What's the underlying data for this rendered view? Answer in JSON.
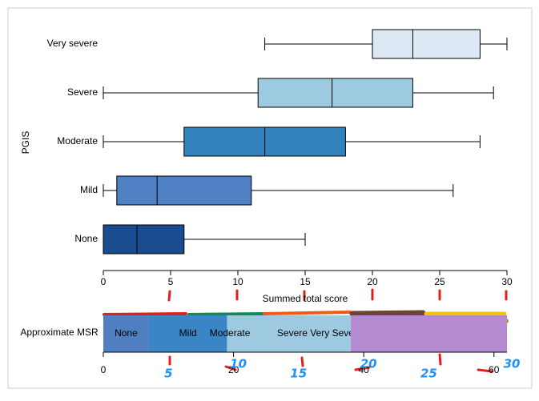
{
  "chart_data": [
    {
      "type": "box",
      "xlabel": "Summed total score",
      "ylabel": "PGIS",
      "xlim": [
        0,
        30
      ],
      "xticks": [
        0,
        5,
        10,
        15,
        20,
        25,
        30
      ],
      "categories": [
        "Very severe",
        "Severe",
        "Moderate",
        "Mild",
        "None"
      ],
      "boxes": [
        {
          "min": 12,
          "q1": 20,
          "median": 23,
          "q3": 28,
          "max": 30,
          "color": "#dce9f5"
        },
        {
          "min": 0,
          "q1": 11.5,
          "median": 17,
          "q3": 23,
          "max": 29,
          "color": "#9ecae1"
        },
        {
          "min": 0,
          "q1": 6,
          "median": 12,
          "q3": 18,
          "max": 28,
          "color": "#3182bd"
        },
        {
          "min": 0,
          "q1": 1,
          "median": 4,
          "q3": 11,
          "max": 26,
          "color": "#4f81c4"
        },
        {
          "min": 0,
          "q1": 0,
          "median": 2.5,
          "q3": 6,
          "max": 15,
          "color": "#1a4d8f"
        }
      ]
    },
    {
      "type": "segments",
      "ylabel": "Approximate MSR",
      "xlim": [
        0,
        62
      ],
      "xticks": [
        0,
        20,
        40,
        60
      ],
      "segments": [
        {
          "labels": [
            "None"
          ],
          "start": 0,
          "end": 7,
          "color": "#4f7fc1"
        },
        {
          "labels": [
            "Mild"
          ],
          "start": 7,
          "end": 19,
          "color": "#3a85c6"
        },
        {
          "labels": [
            "Moderate",
            "Severe Very Severe"
          ],
          "start": 19,
          "end": 38,
          "color": "#9ecae1"
        },
        {
          "labels": [],
          "start": 38,
          "end": 62,
          "color": "#b48ad0"
        }
      ],
      "annotations": [
        {
          "value": 10,
          "label": "5"
        },
        {
          "value": 20,
          "label": "10"
        },
        {
          "value": 30,
          "label": "15"
        },
        {
          "value": 40,
          "label": "20"
        },
        {
          "value": 50,
          "label": "25"
        },
        {
          "value": 62,
          "label": "30"
        }
      ]
    }
  ]
}
